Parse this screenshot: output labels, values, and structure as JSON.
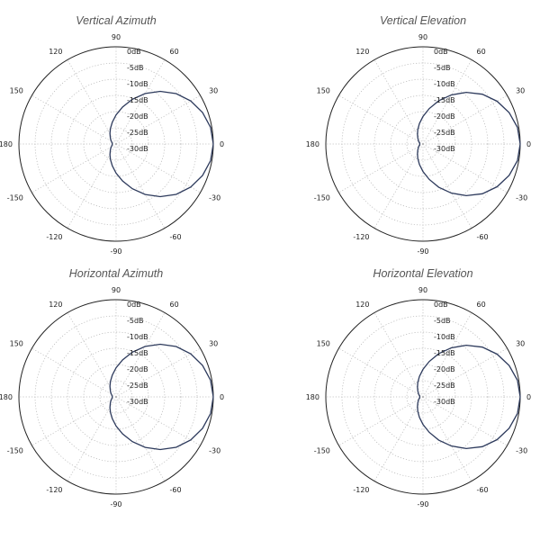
{
  "chart_data": [
    {
      "type": "polar-line",
      "title": "Vertical Azimuth",
      "angle_ticks": [
        "0",
        "30",
        "60",
        "90",
        "120",
        "150",
        "180",
        "-150",
        "-120",
        "-90",
        "-60",
        "-30"
      ],
      "radial_ticks": [
        "0dB",
        "-5dB",
        "-10dB",
        "-15dB",
        "-20dB",
        "-25dB",
        "-30dB"
      ],
      "rlim": [
        -30,
        0
      ],
      "grid": true,
      "series": [
        {
          "color": "#2d3a5c",
          "theta": [
            0,
            10,
            20,
            30,
            40,
            50,
            60,
            70,
            80,
            90,
            100,
            110,
            120,
            130,
            140,
            150,
            160,
            170,
            180,
            190,
            200,
            210,
            220,
            230,
            240,
            250,
            260,
            270,
            280,
            290,
            300,
            310,
            320,
            330,
            340,
            350,
            360
          ],
          "r": [
            0.0,
            -0.4,
            -1.6,
            -3.4,
            -5.8,
            -8.8,
            -12.0,
            -15.3,
            -18.4,
            -21.0,
            -23.2,
            -24.9,
            -26.2,
            -27.2,
            -27.8,
            -28.3,
            -28.6,
            -28.8,
            -28.8,
            -28.8,
            -28.6,
            -28.3,
            -27.8,
            -27.2,
            -26.2,
            -24.9,
            -23.2,
            -21.0,
            -18.4,
            -15.3,
            -12.0,
            -8.8,
            -5.8,
            -3.4,
            -1.6,
            -0.4,
            0.0
          ]
        }
      ]
    },
    {
      "type": "polar-line",
      "title": "Vertical Elevation",
      "angle_ticks": [
        "0",
        "30",
        "60",
        "90",
        "120",
        "150",
        "180",
        "-150",
        "-120",
        "-90",
        "-60",
        "-30"
      ],
      "radial_ticks": [
        "0dB",
        "-5dB",
        "-10dB",
        "-15dB",
        "-20dB",
        "-25dB",
        "-30dB"
      ],
      "rlim": [
        -30,
        0
      ],
      "grid": true,
      "series": [
        {
          "color": "#2d3a5c",
          "theta": [
            0,
            10,
            20,
            30,
            40,
            50,
            60,
            70,
            80,
            90,
            100,
            110,
            120,
            130,
            140,
            150,
            160,
            170,
            180,
            190,
            200,
            210,
            220,
            230,
            240,
            250,
            260,
            270,
            280,
            290,
            300,
            310,
            320,
            330,
            340,
            350,
            360
          ],
          "r": [
            0.0,
            -0.4,
            -1.7,
            -3.6,
            -6.1,
            -9.2,
            -12.5,
            -15.8,
            -18.9,
            -21.5,
            -23.6,
            -25.3,
            -26.6,
            -27.5,
            -28.1,
            -28.5,
            -28.8,
            -29.0,
            -29.0,
            -29.0,
            -28.8,
            -28.5,
            -28.1,
            -27.5,
            -26.6,
            -25.3,
            -23.6,
            -21.5,
            -18.9,
            -15.8,
            -12.5,
            -9.2,
            -6.1,
            -3.6,
            -1.7,
            -0.4,
            0.0
          ]
        }
      ]
    },
    {
      "type": "polar-line",
      "title": "Horizontal Azimuth",
      "angle_ticks": [
        "0",
        "30",
        "60",
        "90",
        "120",
        "150",
        "180",
        "-150",
        "-120",
        "-90",
        "-60",
        "-30"
      ],
      "radial_ticks": [
        "0dB",
        "-5dB",
        "-10dB",
        "-15dB",
        "-20dB",
        "-25dB",
        "-30dB"
      ],
      "rlim": [
        -30,
        0
      ],
      "grid": true,
      "series": [
        {
          "color": "#2d3a5c",
          "theta": [
            0,
            10,
            20,
            30,
            40,
            50,
            60,
            70,
            80,
            90,
            100,
            110,
            120,
            130,
            140,
            150,
            160,
            170,
            180,
            190,
            200,
            210,
            220,
            230,
            240,
            250,
            260,
            270,
            280,
            290,
            300,
            310,
            320,
            330,
            340,
            350,
            360
          ],
          "r": [
            0.0,
            -0.4,
            -1.6,
            -3.4,
            -5.8,
            -8.8,
            -12.0,
            -15.3,
            -18.4,
            -21.0,
            -23.2,
            -24.9,
            -26.2,
            -27.2,
            -27.8,
            -28.3,
            -28.6,
            -28.8,
            -28.8,
            -28.8,
            -28.6,
            -28.3,
            -27.8,
            -27.2,
            -26.2,
            -24.9,
            -23.2,
            -21.0,
            -18.4,
            -15.3,
            -12.0,
            -8.8,
            -5.8,
            -3.4,
            -1.6,
            -0.4,
            0.0
          ]
        }
      ]
    },
    {
      "type": "polar-line",
      "title": "Horizontal Elevation",
      "angle_ticks": [
        "0",
        "30",
        "60",
        "90",
        "120",
        "150",
        "180",
        "-150",
        "-120",
        "-90",
        "-60",
        "-30"
      ],
      "radial_ticks": [
        "0dB",
        "-5dB",
        "-10dB",
        "-15dB",
        "-20dB",
        "-25dB",
        "-30dB"
      ],
      "rlim": [
        -30,
        0
      ],
      "grid": true,
      "series": [
        {
          "color": "#2d3a5c",
          "theta": [
            0,
            10,
            20,
            30,
            40,
            50,
            60,
            70,
            80,
            90,
            100,
            110,
            120,
            130,
            140,
            150,
            160,
            170,
            180,
            190,
            200,
            210,
            220,
            230,
            240,
            250,
            260,
            270,
            280,
            290,
            300,
            310,
            320,
            330,
            340,
            350,
            360
          ],
          "r": [
            0.0,
            -0.4,
            -1.7,
            -3.6,
            -6.1,
            -9.2,
            -12.5,
            -15.8,
            -18.9,
            -21.5,
            -23.6,
            -25.3,
            -26.6,
            -27.5,
            -28.1,
            -28.5,
            -28.8,
            -29.0,
            -29.0,
            -29.0,
            -28.8,
            -28.5,
            -28.1,
            -27.5,
            -26.6,
            -25.3,
            -23.6,
            -21.5,
            -18.9,
            -15.8,
            -12.5,
            -9.2,
            -6.1,
            -3.6,
            -1.7,
            -0.4,
            0.0
          ]
        }
      ]
    }
  ]
}
